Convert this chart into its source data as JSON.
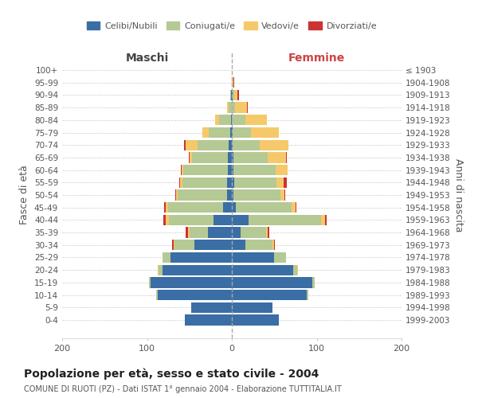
{
  "age_groups": [
    "0-4",
    "5-9",
    "10-14",
    "15-19",
    "20-24",
    "25-29",
    "30-34",
    "35-39",
    "40-44",
    "45-49",
    "50-54",
    "55-59",
    "60-64",
    "65-69",
    "70-74",
    "75-79",
    "80-84",
    "85-89",
    "90-94",
    "95-99",
    "100+"
  ],
  "birth_years": [
    "1999-2003",
    "1994-1998",
    "1989-1993",
    "1984-1988",
    "1979-1983",
    "1974-1978",
    "1969-1973",
    "1964-1968",
    "1959-1963",
    "1954-1958",
    "1949-1953",
    "1944-1948",
    "1939-1943",
    "1934-1938",
    "1929-1933",
    "1924-1928",
    "1919-1923",
    "1914-1918",
    "1909-1913",
    "1904-1908",
    "≤ 1903"
  ],
  "maschi": {
    "celibi": [
      55,
      48,
      87,
      96,
      82,
      72,
      44,
      28,
      22,
      10,
      6,
      6,
      5,
      5,
      4,
      2,
      1,
      0,
      1,
      0,
      0
    ],
    "coniugati": [
      0,
      0,
      2,
      2,
      4,
      10,
      24,
      22,
      52,
      65,
      58,
      52,
      52,
      42,
      36,
      25,
      14,
      4,
      1,
      0,
      0
    ],
    "vedovi": [
      0,
      0,
      0,
      0,
      1,
      0,
      1,
      2,
      4,
      3,
      2,
      3,
      2,
      3,
      14,
      8,
      5,
      2,
      0,
      0,
      0
    ],
    "divorziati": [
      0,
      0,
      0,
      0,
      0,
      0,
      1,
      2,
      3,
      2,
      1,
      1,
      1,
      1,
      2,
      0,
      0,
      0,
      0,
      0,
      0
    ]
  },
  "femmine": {
    "nubili": [
      55,
      48,
      88,
      95,
      72,
      50,
      16,
      10,
      20,
      5,
      2,
      3,
      2,
      2,
      1,
      1,
      0,
      0,
      1,
      0,
      0
    ],
    "coniugate": [
      0,
      0,
      2,
      3,
      5,
      14,
      32,
      30,
      85,
      65,
      55,
      50,
      50,
      40,
      32,
      22,
      16,
      4,
      2,
      0,
      0
    ],
    "vedove": [
      0,
      0,
      0,
      0,
      1,
      0,
      2,
      2,
      5,
      5,
      5,
      8,
      14,
      22,
      34,
      32,
      25,
      14,
      4,
      2,
      0
    ],
    "divorziate": [
      0,
      0,
      0,
      0,
      0,
      0,
      1,
      2,
      2,
      1,
      1,
      4,
      0,
      1,
      0,
      0,
      0,
      1,
      1,
      1,
      0
    ]
  },
  "colors": {
    "celibi": "#3A6EA5",
    "coniugati": "#B5C994",
    "vedovi": "#F5C96A",
    "divorziati": "#CC3333"
  },
  "xlim": 200,
  "title": "Popolazione per età, sesso e stato civile - 2004",
  "subtitle": "COMUNE DI RUOTI (PZ) - Dati ISTAT 1° gennaio 2004 - Elaborazione TUTTITALIA.IT",
  "ylabel_left": "Fasce di età",
  "ylabel_right": "Anni di nascita",
  "xlabel_left": "Maschi",
  "xlabel_right": "Femmine",
  "background_color": "#ffffff",
  "grid_color": "#cccccc"
}
